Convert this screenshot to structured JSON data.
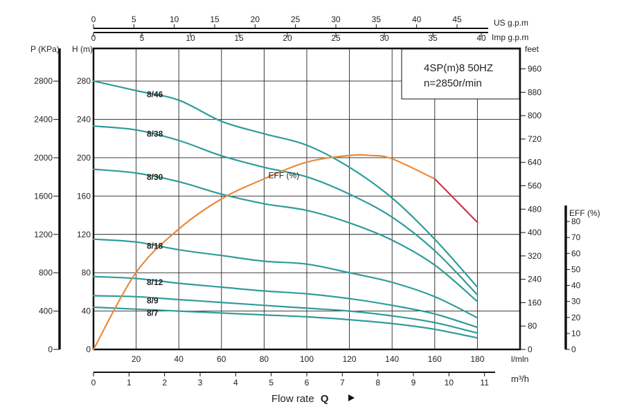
{
  "chart_data": {
    "type": "line",
    "title": "4SP(m)8  50HZ",
    "subtitle": "n=2850r/min",
    "x_axes": {
      "lmin": {
        "label": "l/mln",
        "ticks": [
          20,
          40,
          60,
          80,
          100,
          120,
          140,
          160,
          180
        ],
        "range": [
          0,
          200
        ]
      },
      "m3h": {
        "label": "m³/h",
        "ticks": [
          0,
          1,
          2,
          3,
          4,
          5,
          6,
          7,
          8,
          9,
          10,
          11
        ],
        "range": [
          0,
          12
        ]
      },
      "imp_gpm": {
        "label": "Imp g.p.m",
        "ticks": [
          0,
          5,
          10,
          15,
          20,
          25,
          30,
          35,
          40
        ],
        "range": [
          0,
          44
        ]
      },
      "us_gpm": {
        "label": "US g.p.m",
        "ticks": [
          0,
          5,
          10,
          15,
          20,
          25,
          30,
          35,
          40,
          45
        ],
        "range": [
          0,
          52.8
        ]
      }
    },
    "x_caption": "Flow rate",
    "x_caption_symbol": "Q",
    "y_axes": {
      "pressure": {
        "label": "P (KPa)",
        "ticks": [
          0,
          400,
          800,
          1200,
          1600,
          2000,
          2400,
          2800
        ],
        "range": [
          0,
          3141
        ]
      },
      "head": {
        "label": "H (m)",
        "ticks": [
          0,
          40,
          80,
          120,
          160,
          200,
          240,
          280
        ],
        "range": [
          0,
          314
        ]
      },
      "feet": {
        "label": "feet",
        "ticks": [
          0,
          80,
          160,
          240,
          320,
          400,
          480,
          560,
          640,
          720,
          800,
          880,
          960
        ],
        "range": [
          0,
          1030
        ]
      },
      "eff": {
        "label": "EFF (%)",
        "ticks": [
          0,
          10,
          20,
          30,
          40,
          50,
          60,
          70,
          80
        ],
        "range": [
          0,
          90
        ]
      }
    },
    "grid": true,
    "series": [
      {
        "name": "8/46",
        "unit": "m",
        "x": [
          0,
          20,
          40,
          60,
          80,
          100,
          120,
          140,
          160,
          180
        ],
        "y": [
          280,
          270,
          260,
          238,
          225,
          213,
          190,
          158,
          115,
          65
        ]
      },
      {
        "name": "8/38",
        "unit": "m",
        "x": [
          0,
          20,
          40,
          60,
          80,
          100,
          120,
          140,
          160,
          180
        ],
        "y": [
          233,
          229,
          218,
          202,
          190,
          180,
          162,
          138,
          103,
          57
        ]
      },
      {
        "name": "8/30",
        "unit": "m",
        "x": [
          0,
          20,
          40,
          60,
          80,
          100,
          120,
          140,
          160,
          180
        ],
        "y": [
          188,
          184,
          175,
          162,
          152,
          145,
          132,
          114,
          88,
          50
        ]
      },
      {
        "name": "8/18",
        "unit": "m",
        "x": [
          0,
          20,
          40,
          60,
          80,
          100,
          120,
          140,
          160,
          180
        ],
        "y": [
          115,
          112,
          104,
          98,
          92,
          89,
          80,
          70,
          55,
          33
        ]
      },
      {
        "name": "8/12",
        "unit": "m",
        "x": [
          0,
          20,
          40,
          60,
          80,
          100,
          120,
          140,
          160,
          180
        ],
        "y": [
          76,
          74,
          69,
          65,
          61,
          58,
          53,
          46,
          37,
          23
        ]
      },
      {
        "name": "8/9",
        "unit": "m",
        "x": [
          0,
          20,
          40,
          60,
          80,
          100,
          120,
          140,
          160,
          180
        ],
        "y": [
          56,
          55,
          52,
          49,
          46,
          43,
          40,
          35,
          28,
          17
        ]
      },
      {
        "name": "8/7",
        "unit": "m",
        "x": [
          0,
          20,
          40,
          60,
          80,
          100,
          120,
          140,
          160,
          180
        ],
        "y": [
          44,
          42,
          40,
          38,
          36,
          34,
          31,
          27,
          21,
          12
        ]
      },
      {
        "name": "EFF (%)",
        "unit": "%",
        "x": [
          0,
          20,
          40,
          60,
          80,
          100,
          120,
          130,
          140,
          160,
          180
        ],
        "y": [
          0,
          23,
          36,
          45,
          51,
          56,
          58,
          58,
          57,
          51,
          38
        ]
      }
    ],
    "series_colors": {
      "pump": "#2e9c9a",
      "eff": "#e98a3c",
      "eff_end": "#c8384a"
    }
  }
}
